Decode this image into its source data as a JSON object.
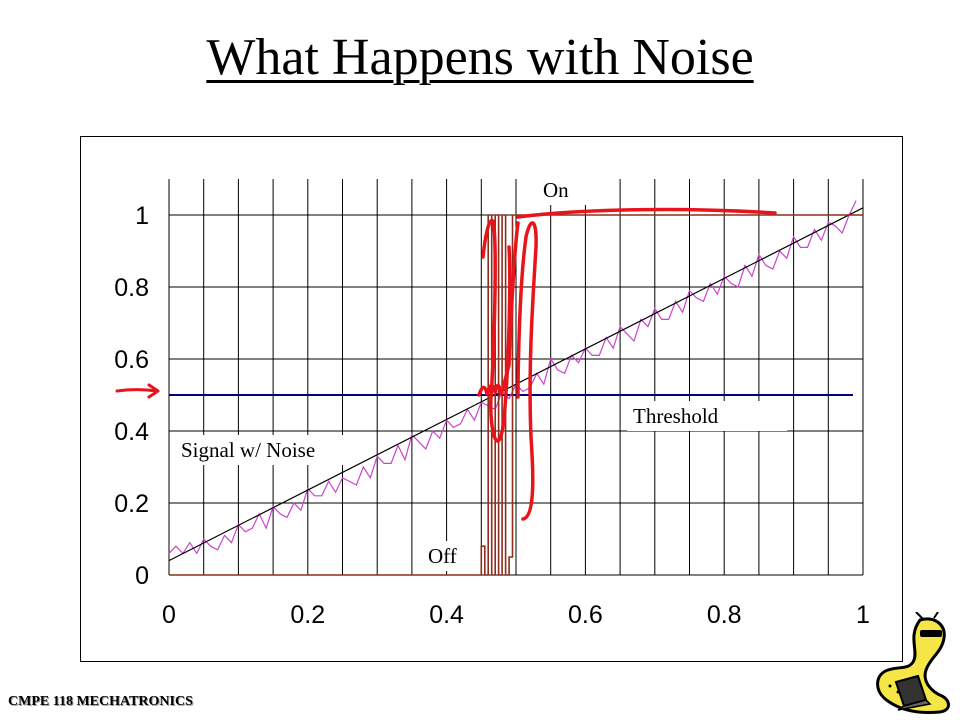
{
  "slide": {
    "title": "What Happens with Noise",
    "footer": "CMPE 118 MECHATRONICS"
  },
  "colors": {
    "grid": "#000000",
    "signal": "#cc44cc",
    "reference": "#000000",
    "threshold": "#000080",
    "output": "#8b2e1e",
    "annotation": "#e8141b"
  },
  "icons": {
    "threshold_marker": "red-arrow-icon",
    "logo": "banana-slug-mascot-icon"
  },
  "chart_data": {
    "type": "line",
    "xlim": [
      0,
      1
    ],
    "ylim": [
      0,
      1.05
    ],
    "xticks": [
      "0",
      "0.2",
      "0.4",
      "0.6",
      "0.8",
      "1"
    ],
    "yticks": [
      "0",
      "0.2",
      "0.4",
      "0.6",
      "0.8",
      "1"
    ],
    "grid": true,
    "threshold": 0.5,
    "annotations": [
      "On",
      "Off",
      "Threshold",
      "Signal w/ Noise"
    ],
    "series": [
      {
        "kind": "signal",
        "x": [
          0,
          0.01,
          0.02,
          0.03,
          0.04,
          0.05,
          0.06,
          0.07,
          0.08,
          0.09,
          0.1,
          0.11,
          0.12,
          0.13,
          0.14,
          0.15,
          0.16,
          0.17,
          0.18,
          0.19,
          0.2,
          0.21,
          0.22,
          0.23,
          0.24,
          0.25,
          0.26,
          0.27,
          0.28,
          0.29,
          0.3,
          0.31,
          0.32,
          0.33,
          0.34,
          0.35,
          0.36,
          0.37,
          0.38,
          0.39,
          0.4,
          0.41,
          0.42,
          0.43,
          0.44,
          0.45,
          0.46,
          0.47,
          0.48,
          0.49,
          0.5,
          0.51,
          0.52,
          0.53,
          0.54,
          0.55,
          0.56,
          0.57,
          0.58,
          0.59,
          0.6,
          0.61,
          0.62,
          0.63,
          0.64,
          0.65,
          0.66,
          0.67,
          0.68,
          0.69,
          0.7,
          0.71,
          0.72,
          0.73,
          0.74,
          0.75,
          0.76,
          0.77,
          0.78,
          0.79,
          0.8,
          0.81,
          0.82,
          0.83,
          0.84,
          0.85,
          0.86,
          0.87,
          0.88,
          0.89,
          0.9,
          0.91,
          0.92,
          0.93,
          0.94,
          0.95,
          0.96,
          0.97,
          0.98,
          0.99
        ],
        "y": [
          0.06,
          0.08,
          0.06,
          0.09,
          0.06,
          0.1,
          0.08,
          0.07,
          0.11,
          0.09,
          0.14,
          0.12,
          0.13,
          0.17,
          0.13,
          0.19,
          0.17,
          0.16,
          0.2,
          0.18,
          0.24,
          0.22,
          0.22,
          0.26,
          0.23,
          0.27,
          0.26,
          0.25,
          0.3,
          0.27,
          0.33,
          0.31,
          0.31,
          0.36,
          0.32,
          0.39,
          0.37,
          0.35,
          0.4,
          0.38,
          0.43,
          0.41,
          0.42,
          0.46,
          0.43,
          0.48,
          0.47,
          0.46,
          0.51,
          0.49,
          0.53,
          0.51,
          0.52,
          0.56,
          0.53,
          0.6,
          0.57,
          0.56,
          0.61,
          0.59,
          0.63,
          0.61,
          0.61,
          0.66,
          0.63,
          0.69,
          0.67,
          0.65,
          0.71,
          0.69,
          0.74,
          0.71,
          0.71,
          0.76,
          0.73,
          0.79,
          0.77,
          0.76,
          0.81,
          0.78,
          0.83,
          0.81,
          0.8,
          0.86,
          0.83,
          0.89,
          0.86,
          0.85,
          0.9,
          0.88,
          0.94,
          0.91,
          0.91,
          0.96,
          0.93,
          0.98,
          0.97,
          0.95,
          1.0,
          1.04
        ]
      },
      {
        "kind": "reference",
        "x": [
          0,
          1
        ],
        "y": [
          0.04,
          1.02
        ]
      },
      {
        "kind": "output",
        "x": [
          0,
          0.45,
          0.45,
          0.455,
          0.455,
          0.46,
          0.46,
          0.465,
          0.465,
          0.47,
          0.47,
          0.475,
          0.475,
          0.48,
          0.48,
          0.485,
          0.485,
          0.49,
          0.49,
          0.495,
          0.495,
          0.5,
          0.5,
          1.0
        ],
        "y": [
          0,
          0,
          0.08,
          0.08,
          0,
          0,
          1,
          1,
          0,
          0,
          1,
          1,
          0,
          0,
          1,
          1,
          0,
          0,
          0.05,
          0.05,
          1,
          1,
          1,
          1
        ]
      }
    ]
  }
}
